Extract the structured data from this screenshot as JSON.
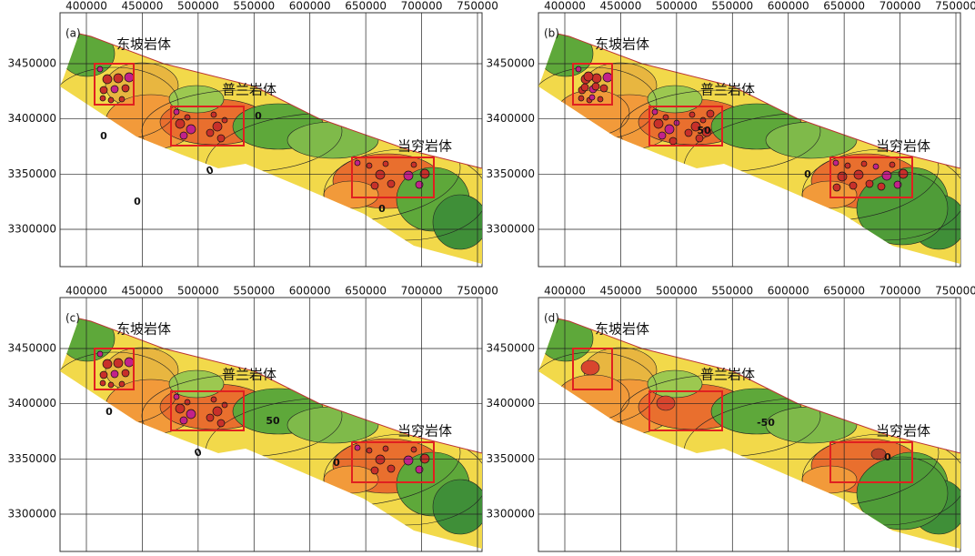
{
  "axes": {
    "xticks": [
      400000,
      450000,
      500000,
      550000,
      600000,
      650000,
      700000,
      750000
    ],
    "yticks": [
      3300000,
      3350000,
      3400000,
      3450000
    ]
  },
  "regions": [
    "东坡岩体",
    "普兰岩体",
    "当穷岩体"
  ],
  "panels": [
    {
      "label": "(a)",
      "contour_labels": [
        "0",
        "0",
        "0",
        "0",
        "0"
      ]
    },
    {
      "label": "(b)",
      "contour_labels": [
        "50",
        "0"
      ]
    },
    {
      "label": "(c)",
      "contour_labels": [
        "0",
        "50",
        "0",
        "0"
      ]
    },
    {
      "label": "(d)",
      "contour_labels": [
        "-50",
        "0"
      ]
    }
  ]
}
